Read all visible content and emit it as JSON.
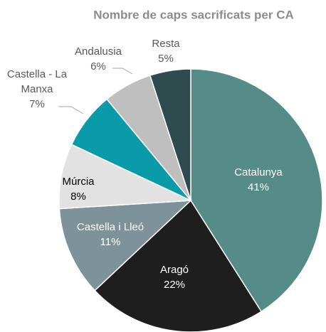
{
  "chart_data": {
    "type": "pie",
    "title": "Nombre de caps sacrificats per CA",
    "categories": [
      "Catalunya",
      "Aragó",
      "Castella i Lleó",
      "Múrcia",
      "Castella - La Manxa",
      "Andalusia",
      "Resta"
    ],
    "values": [
      41,
      22,
      11,
      8,
      7,
      6,
      5
    ],
    "value_labels": [
      "41%",
      "22%",
      "11%",
      "8%",
      "7%",
      "6%",
      "5%"
    ],
    "colors": [
      "#568c88",
      "#1e1e1e",
      "#7e929a",
      "#e2e2e2",
      "#0a9bab",
      "#bfbfbf",
      "#2e4c4d"
    ]
  }
}
